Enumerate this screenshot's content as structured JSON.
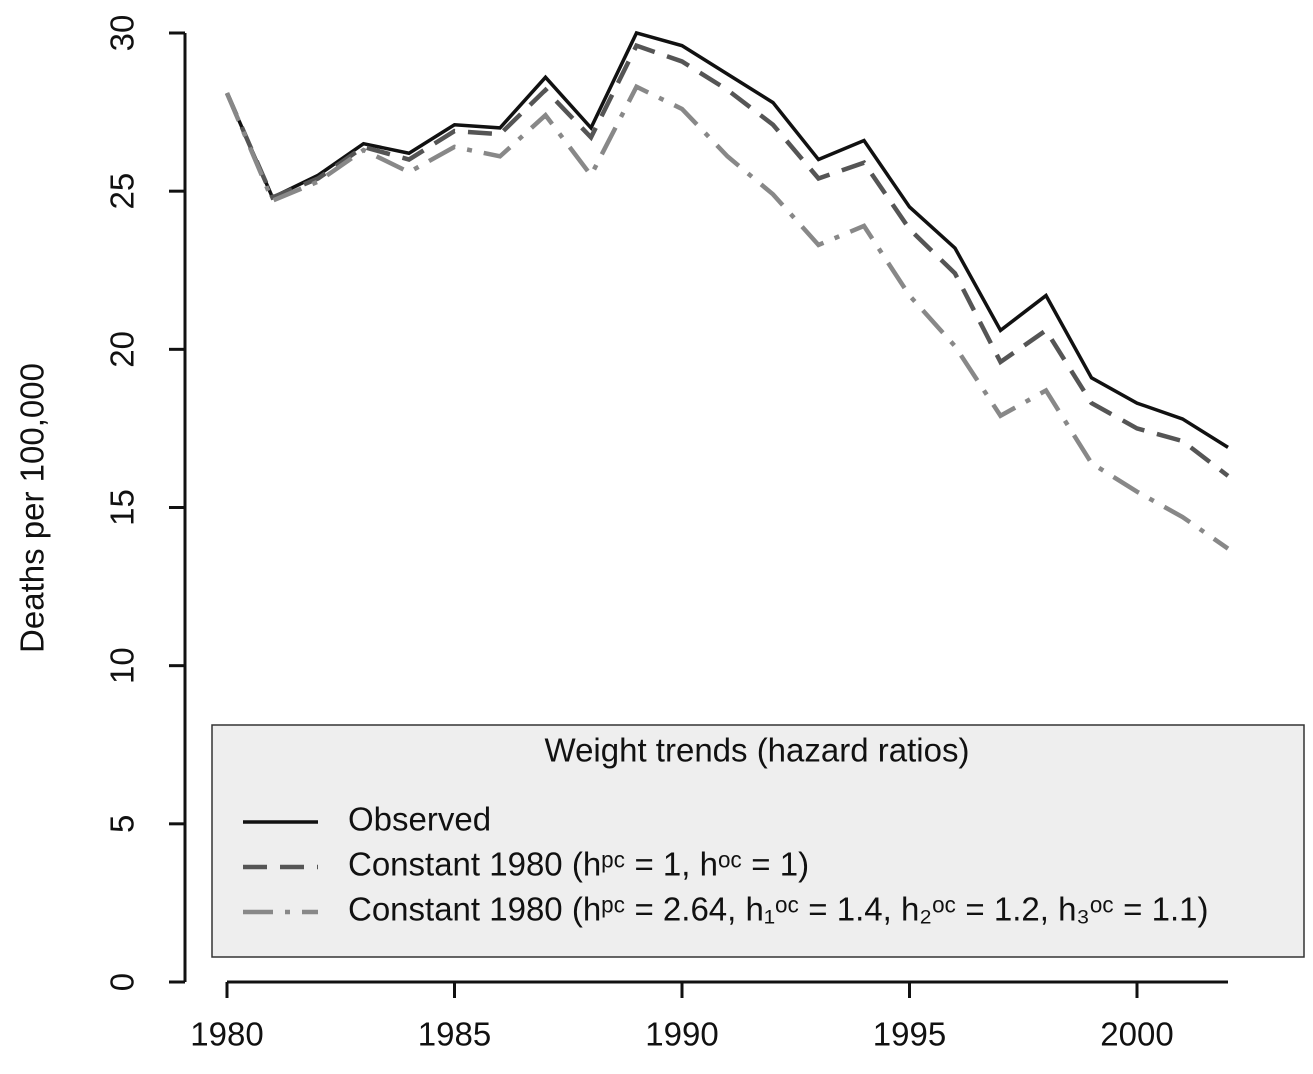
{
  "chart_data": {
    "type": "line",
    "y_label": "Deaths per 100,000",
    "x": [
      1980,
      1981,
      1982,
      1983,
      1984,
      1985,
      1986,
      1987,
      1988,
      1989,
      1990,
      1991,
      1992,
      1993,
      1994,
      1995,
      1996,
      1997,
      1998,
      1999,
      2000,
      2001,
      2002
    ],
    "series": [
      {
        "name": "Observed",
        "color": "#111111",
        "style": "solid",
        "values": [
          28.1,
          24.8,
          25.5,
          26.5,
          26.2,
          27.1,
          27.0,
          28.6,
          27.0,
          30.0,
          29.6,
          28.7,
          27.8,
          26.0,
          26.6,
          24.5,
          23.2,
          20.6,
          21.7,
          19.1,
          18.3,
          17.8,
          16.9
        ]
      },
      {
        "name": "Constant 1980 (hᵖᶜ = 1, hᵒᶜ = 1)",
        "color": "#555555",
        "style": "dashed",
        "values": [
          28.1,
          24.8,
          25.4,
          26.4,
          26.0,
          26.9,
          26.8,
          28.2,
          26.7,
          29.6,
          29.1,
          28.2,
          27.1,
          25.4,
          25.9,
          23.8,
          22.4,
          19.6,
          20.6,
          18.3,
          17.5,
          17.1,
          16.0
        ]
      },
      {
        "name": "Constant 1980 (hᵖᶜ = 2.64, h₁ᵒᶜ = 1.4, h₂ᵒᶜ = 1.2, h₃ᵒᶜ = 1.1)",
        "color": "#888888",
        "style": "dashdot",
        "values": [
          28.1,
          24.7,
          25.3,
          26.3,
          25.6,
          26.4,
          26.1,
          27.4,
          25.5,
          28.3,
          27.6,
          26.1,
          24.9,
          23.3,
          23.9,
          21.7,
          20.1,
          17.9,
          18.7,
          16.4,
          15.5,
          14.7,
          13.7
        ]
      }
    ],
    "legend_title": "Weight trends (hazard ratios)",
    "xlim": [
      1980,
      2002
    ],
    "xticks": [
      1980,
      1985,
      1990,
      1995,
      2000
    ],
    "ylim": [
      0,
      30
    ],
    "yticks": [
      0,
      5,
      10,
      15,
      20,
      25,
      30
    ],
    "legend_position": "bottom"
  }
}
